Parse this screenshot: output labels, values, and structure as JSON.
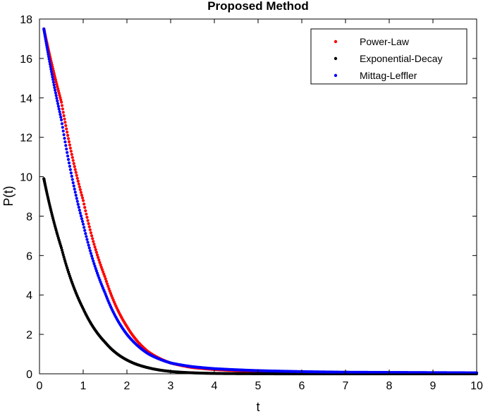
{
  "chart_data": {
    "type": "scatter",
    "title": "Proposed Method",
    "xlabel": "t",
    "ylabel": "P(t)",
    "xlim": [
      0,
      10
    ],
    "ylim": [
      0,
      18
    ],
    "xticks": [
      0,
      1,
      2,
      3,
      4,
      5,
      6,
      7,
      8,
      9,
      10
    ],
    "yticks": [
      0,
      2,
      4,
      6,
      8,
      10,
      12,
      14,
      16,
      18
    ],
    "grid": false,
    "legend_position": "top-right",
    "x": [
      0.1,
      0.5,
      1.0,
      1.5,
      2.0,
      2.5,
      3.0,
      3.5,
      4.0,
      5.0,
      6.0,
      7.0,
      8.0,
      9.0,
      10.0
    ],
    "series": [
      {
        "name": "Power-Law",
        "color": "#ff0000",
        "values": [
          17.5,
          13.8,
          8.8,
          4.9,
          2.4,
          1.1,
          0.55,
          0.32,
          0.22,
          0.12,
          0.08,
          0.06,
          0.05,
          0.04,
          0.04
        ]
      },
      {
        "name": "Exponential-Decay",
        "color": "#000000",
        "values": [
          9.9,
          6.4,
          3.3,
          1.6,
          0.7,
          0.3,
          0.12,
          0.05,
          0.02,
          0.005,
          0.0,
          0.0,
          0.0,
          0.0,
          0.0
        ]
      },
      {
        "name": "Mittag-Leffler",
        "color": "#0000ff",
        "values": [
          17.5,
          12.9,
          7.6,
          4.1,
          2.0,
          1.0,
          0.55,
          0.36,
          0.26,
          0.16,
          0.11,
          0.08,
          0.07,
          0.06,
          0.05
        ]
      }
    ]
  }
}
